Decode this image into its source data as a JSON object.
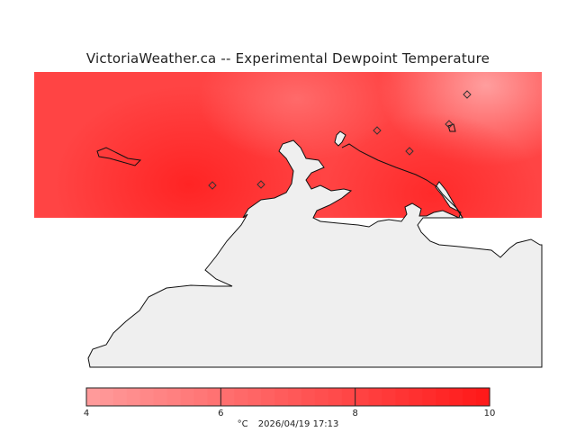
{
  "title": "VictoriaWeather.ca -- Experimental Dewpoint Temperature",
  "colors": {
    "low": "#ff9a9a",
    "high": "#ff1a1a",
    "land": "#efefef",
    "coast": "#111111",
    "background": "#ffffff"
  },
  "legend": {
    "unit": "°C",
    "timestamp": "2026/04/19 17:13",
    "min": 4,
    "max": 10,
    "ticks": [
      {
        "label": "4",
        "value": 4
      },
      {
        "label": "6",
        "value": 6
      },
      {
        "label": "8",
        "value": 8
      },
      {
        "label": "10",
        "value": 10
      }
    ],
    "bins": 30
  },
  "stations": [
    "station-marker"
  ]
}
